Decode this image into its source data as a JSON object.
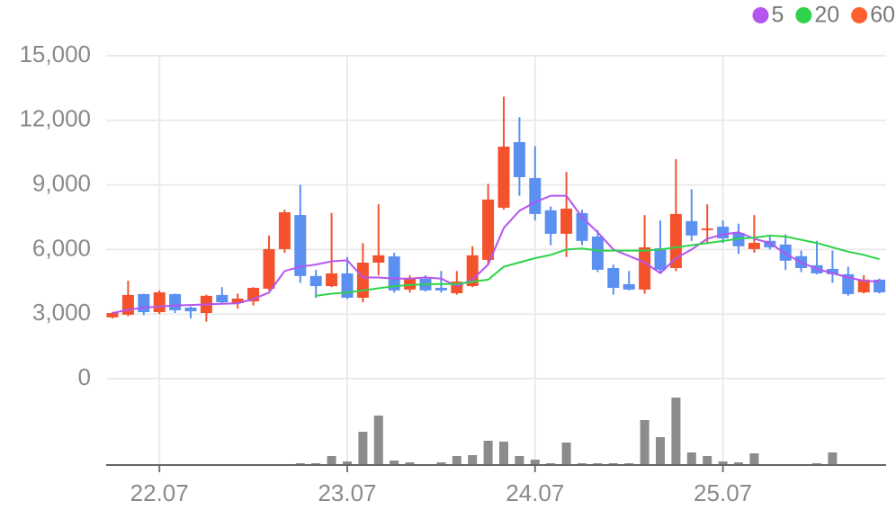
{
  "chart_data": {
    "type": "candlestick",
    "categories": [
      null,
      null,
      null,
      "22.07",
      null,
      null,
      null,
      null,
      null,
      null,
      null,
      null,
      null,
      null,
      null,
      "23.07",
      null,
      null,
      null,
      null,
      null,
      null,
      null,
      null,
      null,
      null,
      null,
      "24.07",
      null,
      null,
      null,
      null,
      null,
      null,
      null,
      null,
      null,
      null,
      null,
      "25.07",
      null,
      null,
      null,
      null,
      null,
      null,
      null,
      null,
      null,
      null
    ],
    "open": [
      2850,
      2970,
      3930,
      3090,
      3930,
      3300,
      3050,
      3890,
      3510,
      3590,
      4180,
      6020,
      7600,
      4770,
      4300,
      4890,
      3760,
      5390,
      5680,
      4140,
      4640,
      4220,
      3970,
      4300,
      5520,
      7940,
      10990,
      9320,
      7820,
      6730,
      7690,
      6600,
      5140,
      4390,
      4140,
      6060,
      5140,
      7320,
      6900,
      7060,
      6770,
      6020,
      6400,
      6230,
      5690,
      5270,
      5100,
      4850,
      4010,
      4600
    ],
    "high": [
      3100,
      4550,
      3950,
      4100,
      3950,
      3350,
      3900,
      4250,
      3950,
      4250,
      6650,
      7850,
      9000,
      5050,
      7700,
      5650,
      6300,
      8100,
      5850,
      4800,
      4800,
      5000,
      5000,
      6150,
      9050,
      13100,
      12150,
      10800,
      8000,
      9600,
      7850,
      6900,
      5300,
      5000,
      7600,
      7350,
      10200,
      8800,
      8100,
      7350,
      7200,
      7600,
      6600,
      6700,
      5950,
      6400,
      5950,
      5200,
      4800,
      4650
    ],
    "low": [
      2800,
      2900,
      2950,
      3000,
      3050,
      2800,
      2650,
      3500,
      3250,
      3400,
      4100,
      5850,
      4450,
      3750,
      4250,
      3700,
      3550,
      4800,
      4000,
      4000,
      4050,
      4000,
      3900,
      4250,
      5300,
      7850,
      8500,
      7350,
      6200,
      5650,
      6200,
      4950,
      3900,
      4100,
      3950,
      4950,
      5000,
      6400,
      6300,
      6300,
      5800,
      5850,
      6000,
      5050,
      4950,
      4850,
      4450,
      3850,
      3950,
      3950
    ],
    "close": [
      3050,
      3890,
      3090,
      4010,
      3180,
      3130,
      3850,
      3550,
      3720,
      4220,
      6020,
      7730,
      4770,
      4300,
      4890,
      3760,
      5390,
      5730,
      4100,
      4640,
      4100,
      4100,
      4510,
      5730,
      8320,
      10780,
      9360,
      7650,
      6730,
      7900,
      6400,
      5060,
      4220,
      4140,
      6100,
      5060,
      7650,
      6650,
      6980,
      6520,
      6150,
      6310,
      6100,
      5480,
      5140,
      4890,
      4850,
      3930,
      4600,
      4010
    ],
    "volume": [
      0.5,
      0.5,
      0.5,
      0.5,
      0.5,
      0.5,
      0.5,
      0.5,
      0.5,
      0.5,
      0.5,
      0.5,
      2,
      2,
      10,
      4,
      37,
      55,
      5,
      3,
      1,
      3,
      10,
      11,
      27,
      26,
      10,
      6,
      2,
      25,
      2,
      2,
      2,
      2,
      50,
      31,
      75,
      14,
      10,
      4,
      3,
      13,
      1,
      1,
      1,
      2,
      14,
      1,
      1,
      0.5
    ],
    "up_color": "#f4522d",
    "down_color": "#5b8ff0",
    "volume_color": "#8c8c8c",
    "series": [
      {
        "name": "5",
        "color": "#b455ef",
        "values": [
          3050,
          3200,
          3300,
          3350,
          3400,
          3420,
          3450,
          3480,
          3500,
          3700,
          4000,
          5000,
          5200,
          5300,
          5450,
          5500,
          4700,
          4700,
          4650,
          4650,
          4700,
          4650,
          4300,
          4600,
          5300,
          7000,
          7800,
          8200,
          8500,
          8500,
          7500,
          6800,
          6000,
          5700,
          5400,
          4900,
          5600,
          6000,
          6500,
          6700,
          6800,
          6500,
          6300,
          5800,
          5400,
          5100,
          4900,
          4700,
          4550,
          4500
        ]
      },
      {
        "name": "20",
        "color": "#2fd34a",
        "values": [
          null,
          null,
          null,
          null,
          null,
          null,
          null,
          null,
          null,
          null,
          null,
          null,
          null,
          3850,
          3950,
          4000,
          4100,
          4200,
          4300,
          4350,
          4380,
          4400,
          4400,
          4500,
          4600,
          5200,
          5400,
          5600,
          5750,
          6000,
          6050,
          5950,
          5950,
          5950,
          5950,
          6000,
          6100,
          6200,
          6300,
          6400,
          6500,
          6550,
          6650,
          6600,
          6450,
          6300,
          6100,
          5900,
          5750,
          5550
        ]
      },
      {
        "name": "60",
        "color": "#ff5f2e",
        "values": [
          null,
          null,
          null,
          null,
          null,
          null,
          null,
          null,
          null,
          null,
          null,
          null,
          null,
          null,
          null,
          null,
          null,
          null,
          null,
          null,
          null,
          null,
          null,
          null,
          null,
          null,
          null,
          null,
          null,
          null,
          null,
          null,
          null,
          null,
          null,
          null,
          null,
          null,
          null,
          null,
          null,
          null,
          null,
          null,
          null,
          null,
          null,
          null,
          null,
          null
        ]
      }
    ],
    "ylim": [
      0,
      15000
    ],
    "yticks": [
      {
        "value": 0,
        "label": "0"
      },
      {
        "value": 3000,
        "label": "3,000"
      },
      {
        "value": 6000,
        "label": "6,000"
      },
      {
        "value": 9000,
        "label": "9,000"
      },
      {
        "value": 12000,
        "label": "12,000"
      },
      {
        "value": 15000,
        "label": "15,000"
      }
    ],
    "grid": true,
    "legend": "top-right"
  }
}
